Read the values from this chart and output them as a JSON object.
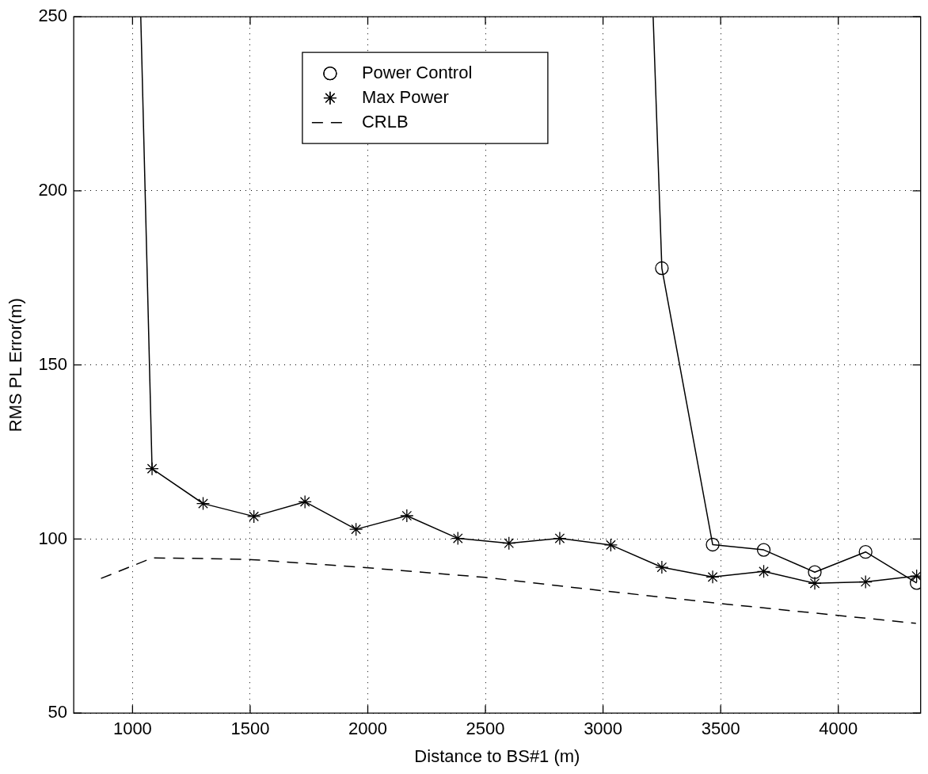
{
  "chart_data": {
    "type": "line",
    "xlabel": "Distance to BS#1 (m)",
    "ylabel": "RMS PL Error(m)",
    "xlim": [
      750,
      4350
    ],
    "ylim": [
      50,
      250
    ],
    "xticks": [
      1000,
      1500,
      2000,
      2500,
      3000,
      3500,
      4000
    ],
    "yticks": [
      50,
      100,
      150,
      200,
      250
    ],
    "grid": true,
    "legend": "top",
    "series": [
      {
        "name": "Power Control",
        "color": "#000000",
        "marker": "circle",
        "line_style": "solid",
        "x": [
          3213,
          3250,
          3466,
          3683,
          3900,
          4116,
          4333
        ],
        "values": [
          250,
          177.8,
          98.4,
          96.9,
          90.5,
          96.3,
          87.4
        ]
      },
      {
        "name": "Max Power",
        "color": "#000000",
        "marker": "cross",
        "line_style": "solid",
        "x": [
          1035,
          1083,
          1300,
          1516,
          1733,
          1950,
          2166,
          2383,
          2600,
          2816,
          3033,
          3250,
          3466,
          3683,
          3900,
          4116,
          4333
        ],
        "values": [
          250,
          120.2,
          110.2,
          106.5,
          110.7,
          102.8,
          106.7,
          100.2,
          98.8,
          100.2,
          98.3,
          91.9,
          89.1,
          90.7,
          87.3,
          87.7,
          89.4
        ]
      },
      {
        "name": "CRLB",
        "color": "#000000",
        "marker": "none",
        "line_style": "dashed",
        "x": [
          866,
          1085,
          1323,
          1507,
          1991,
          2498,
          3005,
          3512,
          4330
        ],
        "values": [
          88.7,
          94.6,
          94.4,
          94.1,
          91.8,
          89.0,
          85.1,
          81.4,
          75.8
        ]
      }
    ]
  }
}
